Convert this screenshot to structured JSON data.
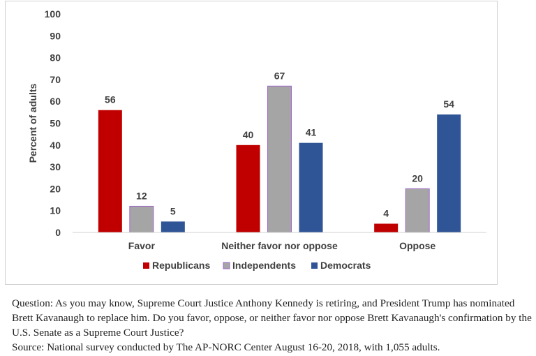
{
  "chart_data": {
    "type": "bar",
    "ylabel": "Percent of adults",
    "ylim": [
      0,
      100
    ],
    "yticks": [
      0,
      10,
      20,
      30,
      40,
      50,
      60,
      70,
      80,
      90,
      100
    ],
    "categories": [
      "Favor",
      "Neither favor nor oppose",
      "Oppose"
    ],
    "series": [
      {
        "name": "Republicans",
        "color": "#c00000",
        "values": [
          56,
          40,
          4
        ]
      },
      {
        "name": "Independents",
        "color": "#a5a5a5",
        "values": [
          12,
          67,
          20
        ]
      },
      {
        "name": "Democrats",
        "color": "#2f5597",
        "values": [
          5,
          41,
          54
        ]
      }
    ],
    "legend": "bottom",
    "grid": false
  },
  "caption": {
    "question": "Question: As you may know, Supreme Court Justice Anthony Kennedy is retiring, and President Trump has nominated Brett Kavanaugh to replace him. Do you favor, oppose, or neither favor nor oppose Brett Kavanaugh's confirmation by the U.S. Senate as a Supreme Court Justice?",
    "source": "Source: National survey conducted by The AP-NORC Center August 16-20, 2018, with 1,055 adults."
  }
}
